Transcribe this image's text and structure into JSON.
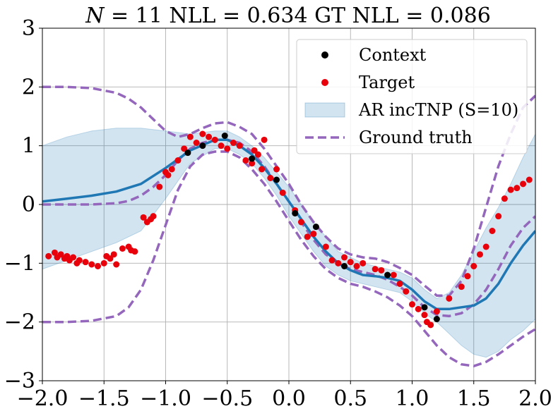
{
  "chart_data": {
    "type": "line",
    "title": "N = 11 NLL = 0.634 GT NLL = 0.086",
    "title_parts": {
      "italic": "N",
      "rest": " = 11 NLL = 0.634 GT NLL = 0.086"
    },
    "xlabel": "",
    "ylabel": "",
    "xlim": [
      -2.0,
      2.0
    ],
    "ylim": [
      -3,
      3
    ],
    "xticks": [
      -2.0,
      -1.5,
      -1.0,
      -0.5,
      0.0,
      0.5,
      1.0,
      1.5,
      2.0
    ],
    "xtick_labels": [
      "−2.0",
      "−1.5",
      "−1.0",
      "−0.5",
      "0.0",
      "0.5",
      "1.0",
      "1.5",
      "2.0"
    ],
    "yticks": [
      -3,
      -2,
      -1,
      0,
      1,
      2,
      3
    ],
    "ytick_labels": [
      "−3",
      "−2",
      "−1",
      "0",
      "1",
      "2",
      "3"
    ],
    "grid": true,
    "legend_position": "top-right",
    "legend": [
      {
        "label": "Context",
        "kind": "marker",
        "color": "#000000"
      },
      {
        "label": "Target",
        "kind": "marker",
        "color": "#e8000b"
      },
      {
        "label": "AR incTNP (S=10)",
        "kind": "band",
        "color": "#1f77b4"
      },
      {
        "label": "Ground truth",
        "kind": "dashed",
        "color": "#9467bd"
      }
    ],
    "colors": {
      "mean": "#1f77b4",
      "band": "#1f77b4",
      "ground_truth": "#9467bd",
      "context": "#000000",
      "target": "#e8000b"
    },
    "series": [
      {
        "name": "AR incTNP (S=10)",
        "x": [
          -2.0,
          -1.8,
          -1.6,
          -1.4,
          -1.2,
          -1.0,
          -0.8,
          -0.6,
          -0.5,
          -0.4,
          -0.3,
          -0.2,
          -0.1,
          0.0,
          0.1,
          0.2,
          0.3,
          0.4,
          0.5,
          0.6,
          0.7,
          0.8,
          0.9,
          1.0,
          1.1,
          1.2,
          1.3,
          1.4,
          1.5,
          1.6,
          1.7,
          1.8,
          1.9,
          2.0
        ],
        "mean": [
          0.05,
          0.1,
          0.15,
          0.22,
          0.35,
          0.62,
          0.92,
          1.1,
          1.1,
          1.0,
          0.85,
          0.62,
          0.35,
          0.05,
          -0.25,
          -0.55,
          -0.8,
          -1.0,
          -1.12,
          -1.2,
          -1.22,
          -1.25,
          -1.3,
          -1.45,
          -1.65,
          -1.78,
          -1.78,
          -1.75,
          -1.72,
          -1.6,
          -1.35,
          -1.0,
          -0.7,
          -0.45
        ],
        "lower": [
          -1.1,
          -0.95,
          -0.8,
          -0.65,
          -0.45,
          0.1,
          0.7,
          0.95,
          0.95,
          0.85,
          0.7,
          0.45,
          0.15,
          -0.2,
          -0.5,
          -0.8,
          -1.05,
          -1.2,
          -1.3,
          -1.35,
          -1.4,
          -1.45,
          -1.5,
          -1.65,
          -1.85,
          -2.0,
          -2.2,
          -2.4,
          -2.55,
          -2.6,
          -2.5,
          -2.3,
          -2.15,
          -1.95
        ],
        "upper": [
          1.0,
          1.15,
          1.25,
          1.3,
          1.3,
          1.25,
          1.2,
          1.25,
          1.25,
          1.15,
          1.0,
          0.8,
          0.55,
          0.3,
          0.0,
          -0.3,
          -0.55,
          -0.8,
          -0.9,
          -1.0,
          -1.05,
          -1.1,
          -1.15,
          -1.25,
          -1.45,
          -1.6,
          -1.5,
          -1.2,
          -0.8,
          -0.4,
          -0.05,
          0.35,
          0.8,
          1.2
        ]
      },
      {
        "name": "Ground truth",
        "x": [
          -2.0,
          -1.8,
          -1.6,
          -1.4,
          -1.3,
          -1.2,
          -1.1,
          -1.0,
          -0.9,
          -0.8,
          -0.7,
          -0.6,
          -0.5,
          -0.4,
          -0.3,
          -0.2,
          -0.1,
          0.0,
          0.1,
          0.2,
          0.3,
          0.4,
          0.5,
          0.6,
          0.7,
          0.8,
          0.9,
          1.0,
          1.1,
          1.2,
          1.3,
          1.4,
          1.5,
          1.6,
          1.7,
          1.8,
          1.9,
          2.0
        ],
        "mean": [
          0.0,
          0.0,
          0.0,
          0.02,
          0.06,
          0.15,
          0.3,
          0.5,
          0.75,
          0.95,
          1.05,
          1.1,
          1.1,
          1.05,
          0.9,
          0.65,
          0.35,
          0.05,
          -0.3,
          -0.6,
          -0.85,
          -1.0,
          -1.1,
          -1.15,
          -1.2,
          -1.28,
          -1.4,
          -1.55,
          -1.75,
          -1.88,
          -1.9,
          -1.85,
          -1.7,
          -1.45,
          -1.1,
          -0.7,
          -0.4,
          -0.2
        ],
        "lower": [
          -2.0,
          -2.0,
          -1.98,
          -1.9,
          -1.75,
          -1.45,
          -0.95,
          -0.35,
          0.25,
          0.65,
          0.85,
          0.9,
          0.9,
          0.8,
          0.6,
          0.35,
          0.05,
          -0.28,
          -0.6,
          -0.88,
          -1.1,
          -1.25,
          -1.35,
          -1.4,
          -1.48,
          -1.58,
          -1.72,
          -1.9,
          -2.15,
          -2.4,
          -2.6,
          -2.72,
          -2.75,
          -2.68,
          -2.55,
          -2.4,
          -2.25,
          -2.12
        ],
        "upper": [
          2.0,
          2.0,
          1.98,
          1.9,
          1.8,
          1.65,
          1.45,
          1.25,
          1.15,
          1.2,
          1.3,
          1.38,
          1.4,
          1.32,
          1.2,
          0.95,
          0.65,
          0.35,
          0.0,
          -0.3,
          -0.55,
          -0.75,
          -0.85,
          -0.9,
          -0.92,
          -0.98,
          -1.08,
          -1.2,
          -1.38,
          -1.55,
          -1.55,
          -1.3,
          -0.75,
          -0.05,
          0.65,
          1.2,
          1.65,
          1.85
        ]
      }
    ],
    "context_points": {
      "x": [
        -0.82,
        -0.7,
        -0.52,
        -0.3,
        -0.1,
        0.05,
        0.22,
        0.45,
        0.8,
        1.1,
        1.2
      ],
      "y": [
        0.88,
        1.0,
        1.17,
        0.78,
        0.42,
        -0.15,
        -0.38,
        -1.05,
        -1.2,
        -1.75,
        -1.95
      ]
    },
    "target_points": {
      "x": [
        -1.95,
        -1.9,
        -1.88,
        -1.85,
        -1.82,
        -1.8,
        -1.78,
        -1.75,
        -1.72,
        -1.7,
        -1.65,
        -1.6,
        -1.55,
        -1.5,
        -1.48,
        -1.45,
        -1.42,
        -1.4,
        -1.35,
        -1.3,
        -1.28,
        -1.25,
        -1.18,
        -1.15,
        -1.12,
        -1.1,
        -1.05,
        -1.0,
        -0.98,
        -0.95,
        -0.9,
        -0.85,
        -0.8,
        -0.75,
        -0.7,
        -0.65,
        -0.6,
        -0.55,
        -0.5,
        -0.45,
        -0.4,
        -0.35,
        -0.3,
        -0.28,
        -0.25,
        -0.22,
        -0.2,
        -0.15,
        -0.1,
        -0.05,
        0.05,
        0.1,
        0.15,
        0.2,
        0.3,
        0.35,
        0.4,
        0.45,
        0.5,
        0.55,
        0.6,
        0.7,
        0.75,
        0.85,
        0.9,
        0.95,
        1.0,
        1.05,
        1.1,
        1.12,
        1.15,
        1.2,
        1.3,
        1.4,
        1.45,
        1.5,
        1.55,
        1.6,
        1.65,
        1.7,
        1.75,
        1.8,
        1.85,
        1.9,
        1.95
      ],
      "y": [
        -0.88,
        -0.82,
        -0.9,
        -0.85,
        -0.92,
        -0.88,
        -0.95,
        -0.9,
        -1.0,
        -0.95,
        -0.98,
        -1.02,
        -1.05,
        -1.0,
        -0.88,
        -0.92,
        -0.85,
        -1.02,
        -0.75,
        -0.72,
        -0.78,
        -0.8,
        -0.22,
        -0.3,
        -0.25,
        -0.2,
        0.3,
        0.55,
        0.5,
        0.6,
        0.75,
        0.95,
        1.15,
        1.05,
        1.2,
        1.15,
        1.1,
        1.0,
        0.95,
        1.05,
        1.0,
        0.75,
        0.7,
        0.92,
        0.85,
        0.6,
        1.1,
        0.45,
        0.6,
        0.2,
        -0.1,
        -0.3,
        -0.55,
        -0.5,
        -0.72,
        -0.95,
        -1.0,
        -0.9,
        -0.98,
        -1.05,
        -1.0,
        -1.1,
        -1.12,
        -1.2,
        -1.35,
        -1.48,
        -1.7,
        -1.78,
        -1.88,
        -2.0,
        -2.05,
        -1.82,
        -1.6,
        -1.4,
        -1.22,
        -1.05,
        -0.85,
        -0.72,
        -0.45,
        -0.2,
        0.1,
        0.25,
        0.28,
        0.35,
        0.42
      ]
    }
  }
}
